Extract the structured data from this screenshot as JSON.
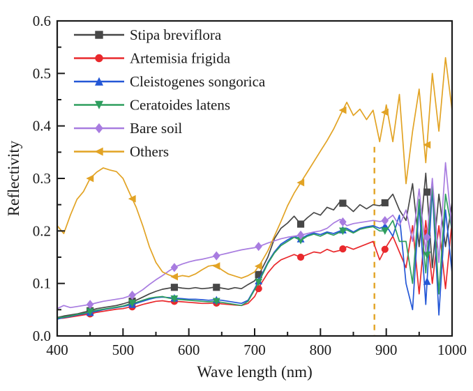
{
  "figure": {
    "background": "#ffffff",
    "frame_color": "#1a1a1a"
  },
  "chart_data": {
    "type": "line",
    "title": "",
    "xlabel": "Wave length (nm)",
    "ylabel": "Reflectivity",
    "xlim": [
      400,
      1000
    ],
    "ylim": [
      0.0,
      0.6
    ],
    "xticks": [
      400,
      500,
      600,
      700,
      800,
      900,
      1000
    ],
    "yticks": [
      0.0,
      0.1,
      0.2,
      0.3,
      0.4,
      0.5,
      0.6
    ],
    "ytick_labels": [
      "0.0",
      "0.1",
      "0.2",
      "0.3",
      "0.4",
      "0.5",
      "0.6"
    ],
    "x_minor_ticks": [
      450,
      550,
      650,
      750,
      850,
      950
    ],
    "y_minor_ticks": [
      0.05,
      0.15,
      0.25,
      0.35,
      0.45,
      0.55
    ],
    "grid": false,
    "legend_position": "upper-left-inside",
    "marker_x": [
      450,
      514,
      578,
      642,
      706,
      770,
      834,
      898,
      962
    ],
    "x": [
      400,
      410,
      420,
      430,
      440,
      450,
      460,
      470,
      480,
      490,
      500,
      510,
      520,
      530,
      540,
      550,
      560,
      570,
      580,
      590,
      600,
      610,
      620,
      630,
      640,
      650,
      660,
      670,
      680,
      690,
      700,
      710,
      720,
      730,
      740,
      750,
      760,
      770,
      780,
      790,
      800,
      810,
      820,
      830,
      840,
      850,
      860,
      870,
      880,
      890,
      900,
      910,
      920,
      930,
      940,
      950,
      960,
      970,
      980,
      990,
      1000
    ],
    "series": [
      {
        "name": "Stipa breviflora",
        "color": "#474747",
        "marker": "square",
        "values": [
          0.035,
          0.038,
          0.04,
          0.042,
          0.045,
          0.048,
          0.052,
          0.054,
          0.056,
          0.058,
          0.061,
          0.065,
          0.068,
          0.074,
          0.08,
          0.085,
          0.089,
          0.091,
          0.093,
          0.091,
          0.09,
          0.092,
          0.09,
          0.091,
          0.093,
          0.091,
          0.089,
          0.092,
          0.09,
          0.098,
          0.105,
          0.125,
          0.15,
          0.185,
          0.205,
          0.215,
          0.228,
          0.213,
          0.225,
          0.235,
          0.23,
          0.245,
          0.24,
          0.256,
          0.248,
          0.237,
          0.25,
          0.242,
          0.25,
          0.248,
          0.255,
          0.27,
          0.24,
          0.22,
          0.29,
          0.17,
          0.31,
          0.13,
          0.27,
          0.17,
          0.255
        ]
      },
      {
        "name": "Artemisia frigida",
        "color": "#e9292c",
        "marker": "circle",
        "values": [
          0.033,
          0.034,
          0.036,
          0.038,
          0.04,
          0.042,
          0.045,
          0.047,
          0.049,
          0.051,
          0.052,
          0.055,
          0.056,
          0.06,
          0.063,
          0.066,
          0.067,
          0.065,
          0.066,
          0.065,
          0.064,
          0.063,
          0.062,
          0.062,
          0.063,
          0.061,
          0.06,
          0.059,
          0.058,
          0.062,
          0.075,
          0.1,
          0.12,
          0.135,
          0.145,
          0.15,
          0.155,
          0.15,
          0.155,
          0.16,
          0.158,
          0.165,
          0.16,
          0.163,
          0.17,
          0.165,
          0.17,
          0.175,
          0.18,
          0.145,
          0.17,
          0.19,
          0.16,
          0.13,
          0.21,
          0.08,
          0.22,
          0.1,
          0.21,
          0.09,
          0.22
        ]
      },
      {
        "name": "Cleistogenes songorica",
        "color": "#2457d6",
        "marker": "triangle-up",
        "values": [
          0.032,
          0.035,
          0.037,
          0.04,
          0.042,
          0.045,
          0.047,
          0.05,
          0.052,
          0.054,
          0.056,
          0.059,
          0.062,
          0.066,
          0.07,
          0.073,
          0.074,
          0.073,
          0.072,
          0.071,
          0.07,
          0.07,
          0.069,
          0.068,
          0.069,
          0.068,
          0.066,
          0.064,
          0.062,
          0.068,
          0.09,
          0.115,
          0.14,
          0.16,
          0.175,
          0.183,
          0.19,
          0.185,
          0.192,
          0.196,
          0.193,
          0.198,
          0.195,
          0.2,
          0.205,
          0.198,
          0.205,
          0.208,
          0.21,
          0.205,
          0.21,
          0.19,
          0.23,
          0.1,
          0.05,
          0.25,
          0.06,
          0.28,
          0.04,
          0.24,
          0.12
        ]
      },
      {
        "name": "Ceratoides latens",
        "color": "#2e9e5e",
        "marker": "triangle-down",
        "values": [
          0.034,
          0.036,
          0.038,
          0.041,
          0.043,
          0.046,
          0.049,
          0.051,
          0.053,
          0.055,
          0.057,
          0.061,
          0.064,
          0.068,
          0.072,
          0.074,
          0.075,
          0.072,
          0.07,
          0.069,
          0.068,
          0.067,
          0.066,
          0.065,
          0.066,
          0.064,
          0.062,
          0.06,
          0.058,
          0.066,
          0.088,
          0.112,
          0.138,
          0.158,
          0.172,
          0.18,
          0.188,
          0.182,
          0.19,
          0.194,
          0.19,
          0.196,
          0.192,
          0.198,
          0.202,
          0.196,
          0.203,
          0.206,
          0.208,
          0.2,
          0.2,
          0.22,
          0.18,
          0.18,
          0.1,
          0.26,
          0.12,
          0.29,
          0.08,
          0.27,
          0.2
        ]
      },
      {
        "name": "Bare soil",
        "color": "#a87ce0",
        "marker": "diamond",
        "values": [
          0.052,
          0.058,
          0.054,
          0.056,
          0.058,
          0.06,
          0.063,
          0.066,
          0.068,
          0.07,
          0.072,
          0.076,
          0.08,
          0.088,
          0.098,
          0.107,
          0.115,
          0.124,
          0.132,
          0.137,
          0.141,
          0.144,
          0.146,
          0.149,
          0.152,
          0.155,
          0.158,
          0.161,
          0.164,
          0.166,
          0.168,
          0.172,
          0.177,
          0.181,
          0.185,
          0.188,
          0.19,
          0.192,
          0.195,
          0.198,
          0.2,
          0.205,
          0.215,
          0.222,
          0.21,
          0.214,
          0.216,
          0.218,
          0.22,
          0.218,
          0.22,
          0.23,
          0.21,
          0.24,
          0.18,
          0.28,
          0.16,
          0.3,
          0.14,
          0.33,
          0.2
        ]
      },
      {
        "name": "Others",
        "color": "#e2a324",
        "marker": "triangle-left",
        "values": [
          0.21,
          0.195,
          0.23,
          0.26,
          0.275,
          0.3,
          0.312,
          0.32,
          0.316,
          0.313,
          0.3,
          0.272,
          0.245,
          0.21,
          0.17,
          0.14,
          0.122,
          0.116,
          0.112,
          0.115,
          0.113,
          0.118,
          0.126,
          0.133,
          0.135,
          0.126,
          0.118,
          0.114,
          0.11,
          0.115,
          0.122,
          0.14,
          0.162,
          0.19,
          0.218,
          0.248,
          0.272,
          0.292,
          0.312,
          0.332,
          0.352,
          0.372,
          0.394,
          0.42,
          0.445,
          0.42,
          0.432,
          0.412,
          0.43,
          0.37,
          0.44,
          0.37,
          0.46,
          0.29,
          0.39,
          0.47,
          0.33,
          0.5,
          0.39,
          0.53,
          0.43
        ]
      }
    ],
    "annotation": {
      "type": "vertical-dashed-line",
      "x": 882,
      "y_from": 0.0,
      "y_to": 0.36,
      "color": "#e2a324"
    }
  }
}
